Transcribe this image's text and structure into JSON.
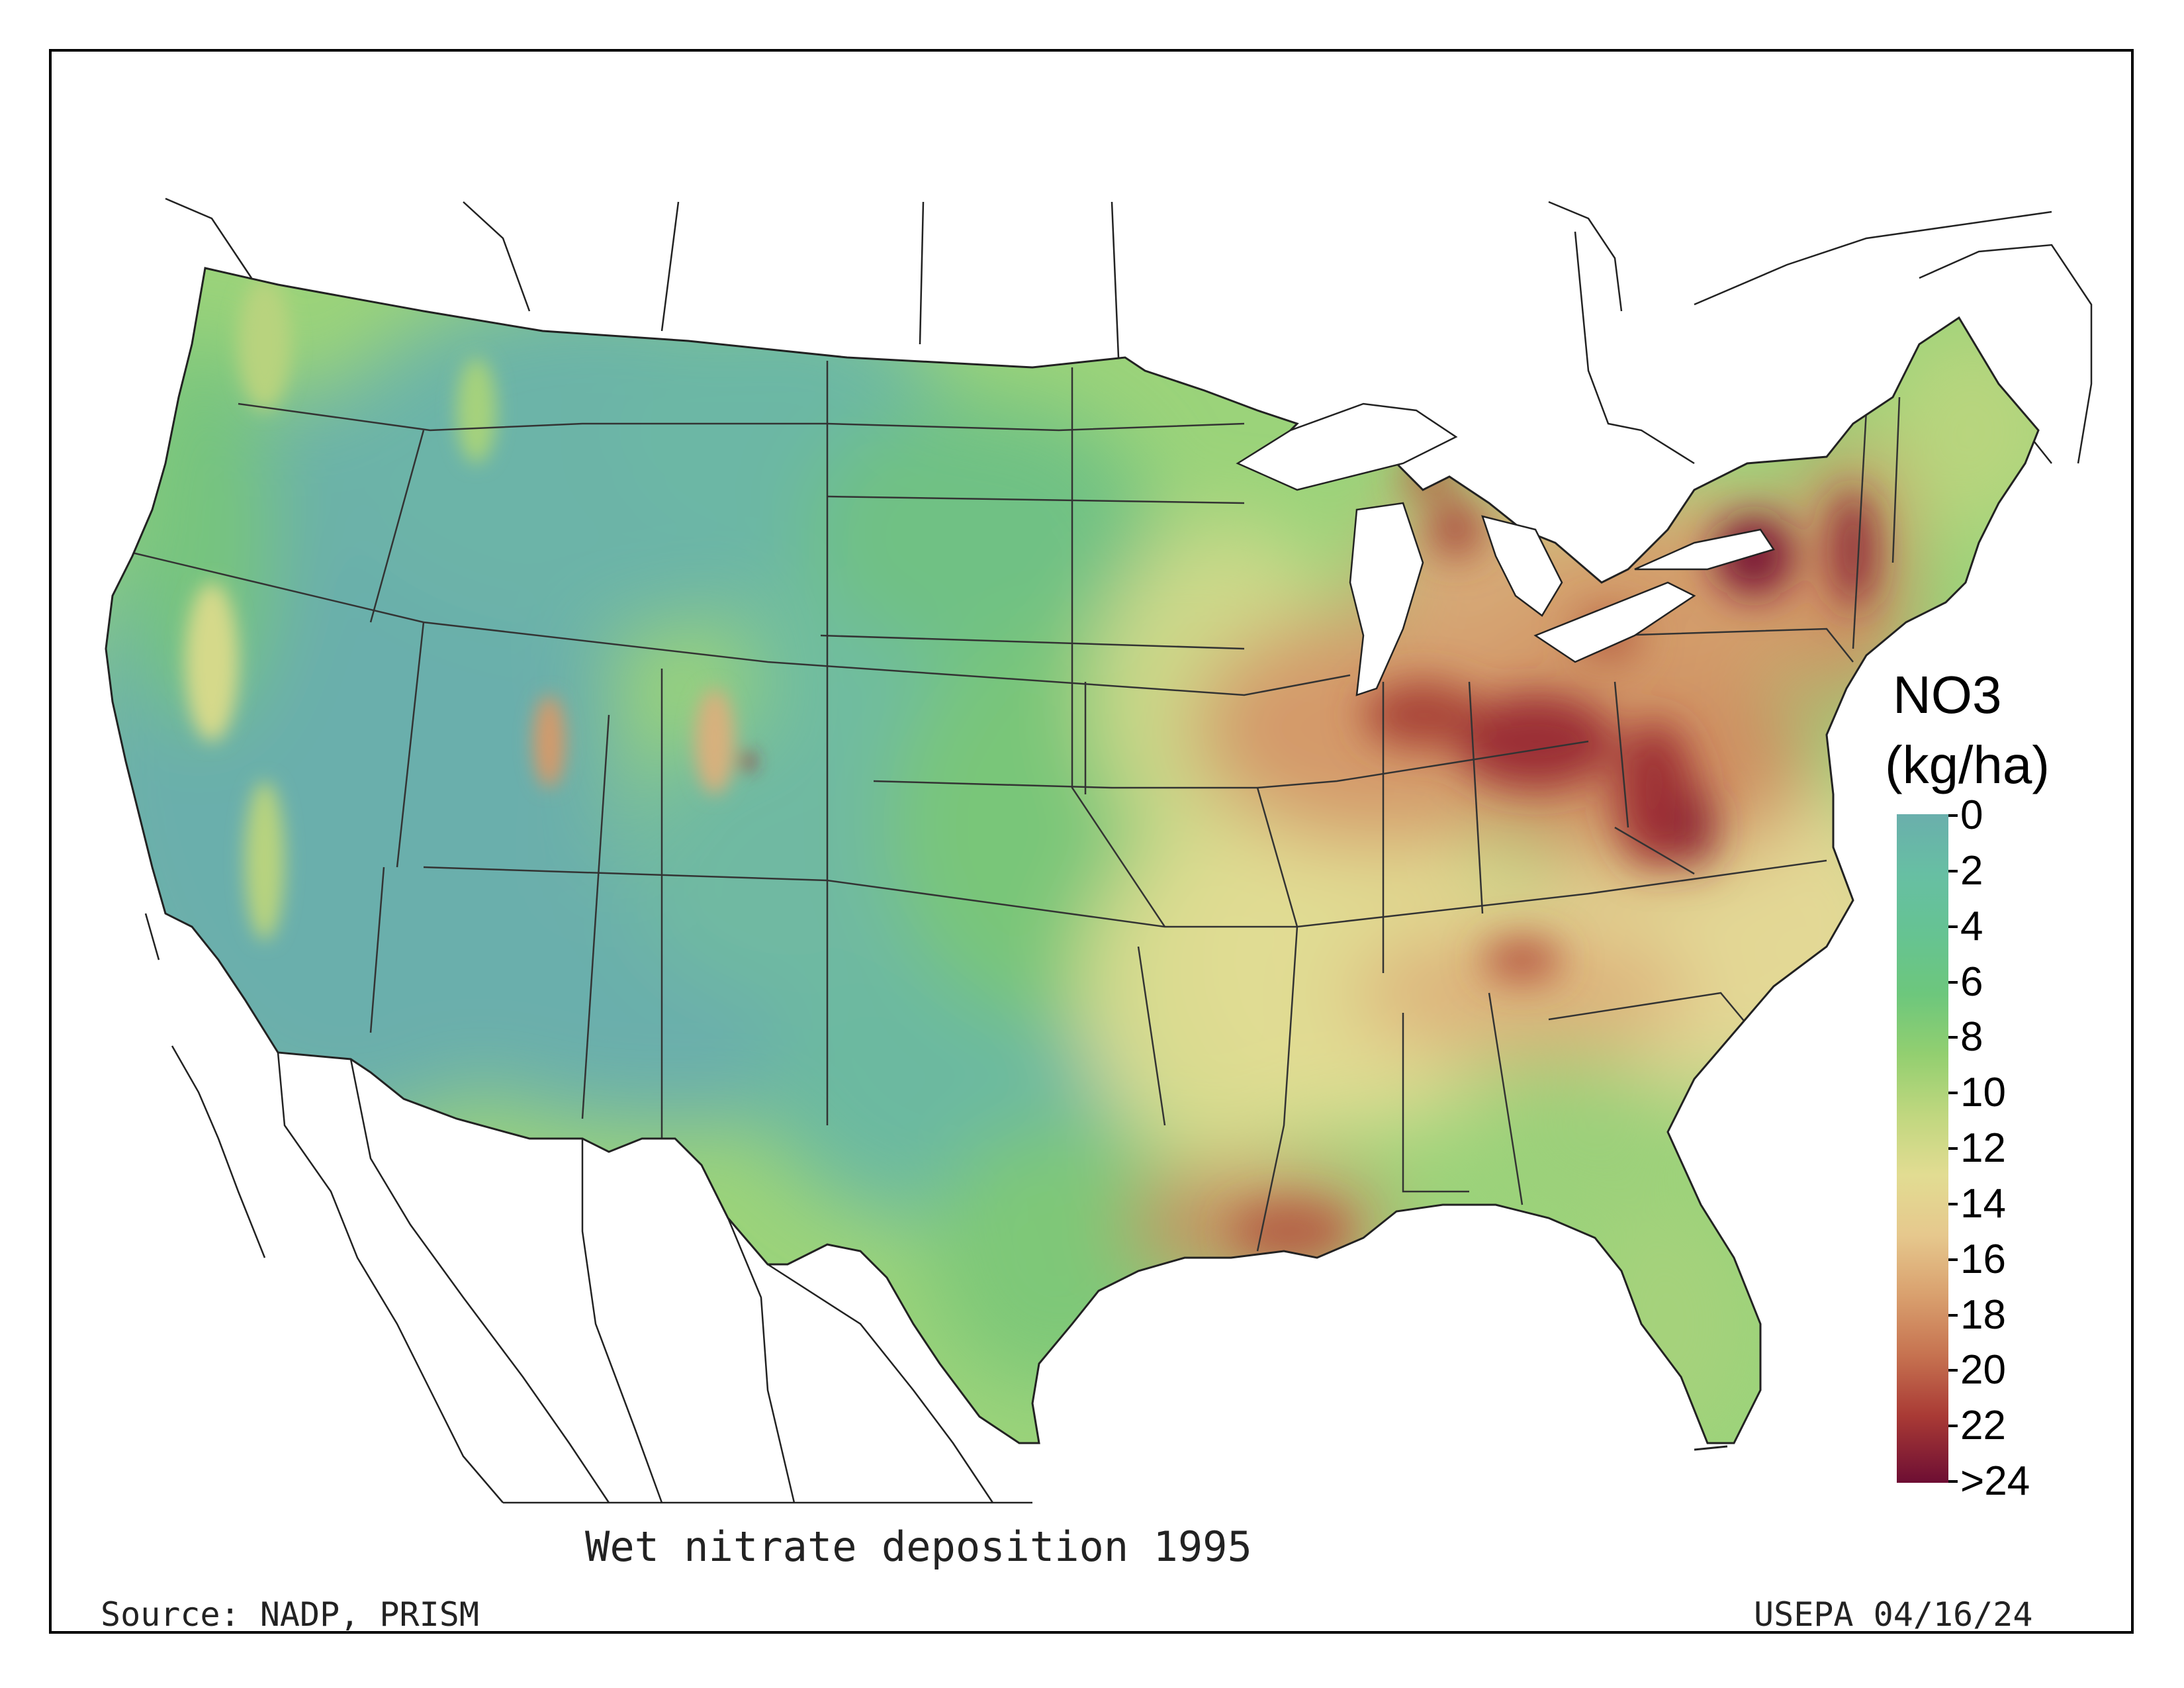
{
  "map": {
    "title": "Wet nitrate deposition 1995",
    "source": "Source: NADP, PRISM",
    "credit": "USEPA 04/16/24",
    "variable": "NO3",
    "units": "(kg/ha)",
    "colors": {
      "very_low": "#6aafac",
      "low": "#66c392",
      "mid_low": "#93cf70",
      "mid": "#e2dc92",
      "mid_high": "#d9a06e",
      "high": "#a93a35",
      "very_high": "#6d0e33"
    }
  },
  "legend": {
    "title": "NO3",
    "units": "(kg/ha)",
    "ticks": [
      "0",
      "2",
      "4",
      "6",
      "8",
      "10",
      "12",
      "14",
      "16",
      "18",
      "20",
      "22",
      ">24"
    ]
  }
}
